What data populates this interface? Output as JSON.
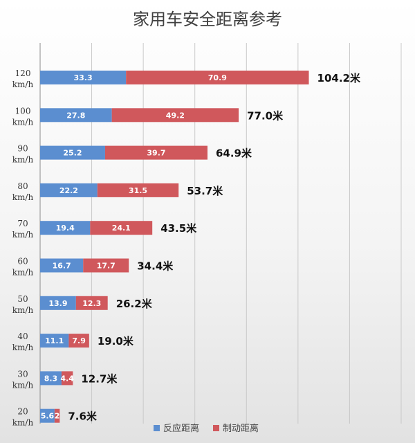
{
  "colors": {
    "reaction": "#5b8ed0",
    "braking": "#d0585c",
    "grid": "#c9c9c9"
  },
  "chart_data": {
    "type": "bar",
    "orientation": "horizontal",
    "stacked": true,
    "title": "家用车安全距离参考",
    "categories": [
      [
        "120",
        "km/h"
      ],
      [
        "100",
        "km/h"
      ],
      [
        "90",
        "km/h"
      ],
      [
        "80",
        "km/h"
      ],
      [
        "70",
        "km/h"
      ],
      [
        "60",
        "km/h"
      ],
      [
        "50",
        "km/h"
      ],
      [
        "40",
        "km/h"
      ],
      [
        "30",
        "km/h"
      ],
      [
        "20",
        "km/h"
      ]
    ],
    "series": [
      {
        "name": "反应距离",
        "values": [
          33.3,
          27.8,
          25.2,
          22.2,
          19.4,
          16.7,
          13.9,
          11.1,
          8.3,
          5.6
        ]
      },
      {
        "name": "制动距离",
        "values": [
          70.9,
          49.2,
          39.7,
          31.5,
          24.1,
          17.7,
          12.3,
          7.9,
          4.4,
          2
        ]
      }
    ],
    "totals": [
      "104.2米",
      "77.0米",
      "64.9米",
      "53.7米",
      "43.5米",
      "34.4米",
      "26.2米",
      "19.0米",
      "12.7米",
      "7.6米"
    ],
    "xlim": [
      0,
      140
    ],
    "grid": true,
    "legend_position": "bottom"
  }
}
